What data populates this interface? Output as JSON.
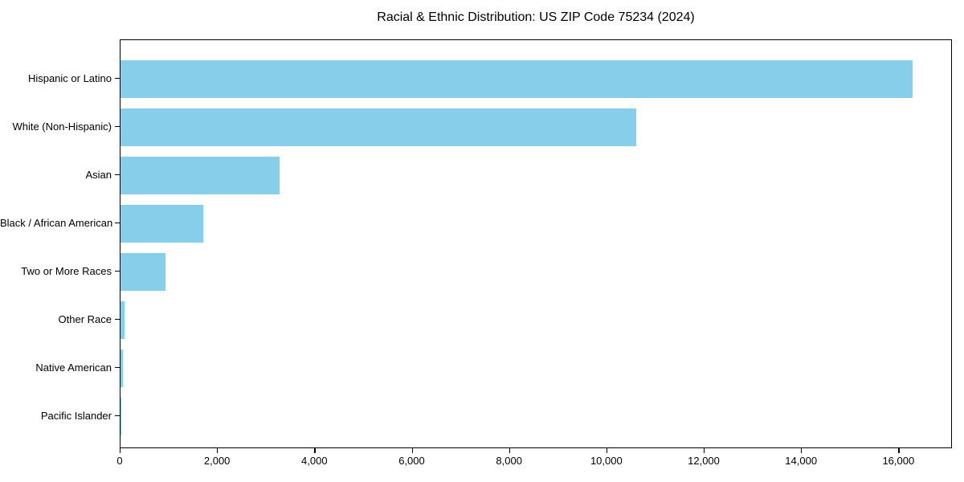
{
  "title": "Racial & Ethnic Distribution: US ZIP Code 75234 (2024)",
  "colors": {
    "bar": "#87CEEB",
    "text": "#000000",
    "axis": "#000000",
    "background": "#FFFFFF"
  },
  "chart_data": {
    "type": "bar",
    "orientation": "horizontal",
    "title": "Racial & Ethnic Distribution: US ZIP Code 75234 (2024)",
    "categories": [
      "Hispanic or Latino",
      "White (Non-Hispanic)",
      "Asian",
      "Black / African American",
      "Two or More Races",
      "Other Race",
      "Native American",
      "Pacific Islander"
    ],
    "values": [
      16280,
      10590,
      3270,
      1700,
      920,
      75,
      45,
      10
    ],
    "xlabel": "",
    "ylabel": "",
    "xlim": [
      0,
      17100
    ],
    "x_ticks": [
      0,
      2000,
      4000,
      6000,
      8000,
      10000,
      12000,
      14000,
      16000
    ],
    "x_tick_labels": [
      "0",
      "2,000",
      "4,000",
      "6,000",
      "8,000",
      "10,000",
      "12,000",
      "14,000",
      "16,000"
    ],
    "grid": false,
    "legend": false,
    "bar_color": "#87CEEB",
    "sorted": "descending"
  }
}
